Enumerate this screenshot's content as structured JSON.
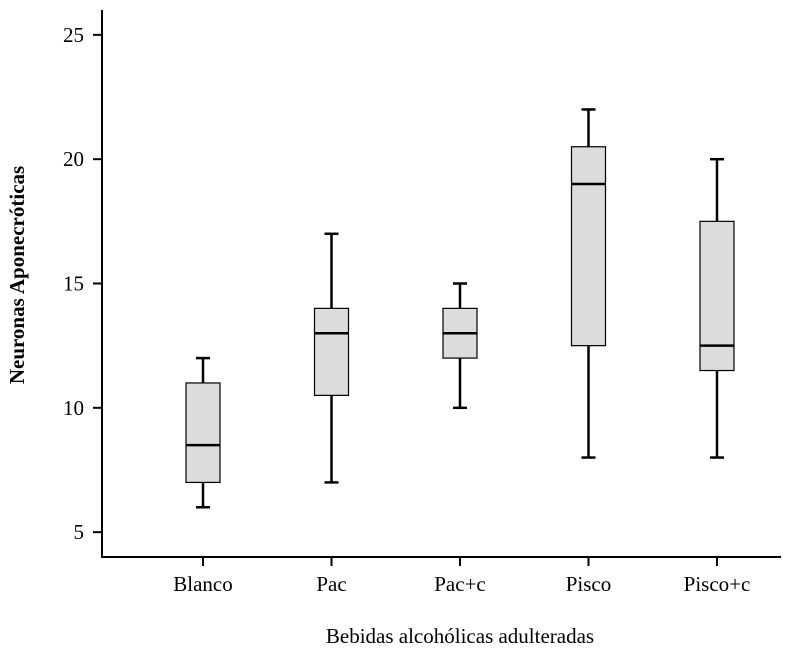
{
  "chart_data": {
    "type": "box",
    "xlabel": "Bebidas alcohólicas adulteradas",
    "ylabel": "Neuronas Aponecróticas",
    "ylim": [
      4,
      26
    ],
    "yticks": [
      5,
      10,
      15,
      20,
      25
    ],
    "categories": [
      "Blanco",
      "Pac",
      "Pac+c",
      "Pisco",
      "Pisco+c"
    ],
    "boxes": [
      {
        "category": "Blanco",
        "min": 6,
        "q1": 7,
        "median": 8.5,
        "q3": 11,
        "max": 12
      },
      {
        "category": "Pac",
        "min": 7,
        "q1": 10.5,
        "median": 13,
        "q3": 14,
        "max": 17
      },
      {
        "category": "Pac+c",
        "min": 10,
        "q1": 12,
        "median": 13,
        "q3": 14,
        "max": 15
      },
      {
        "category": "Pisco",
        "min": 8,
        "q1": 12.5,
        "median": 19,
        "q3": 20.5,
        "max": 22
      },
      {
        "category": "Pisco+c",
        "min": 8,
        "q1": 11.5,
        "median": 12.5,
        "q3": 17.5,
        "max": 20
      }
    ],
    "box_fill": "#dcdcdc",
    "line_color": "#000000",
    "grid": false,
    "legend": "none"
  }
}
